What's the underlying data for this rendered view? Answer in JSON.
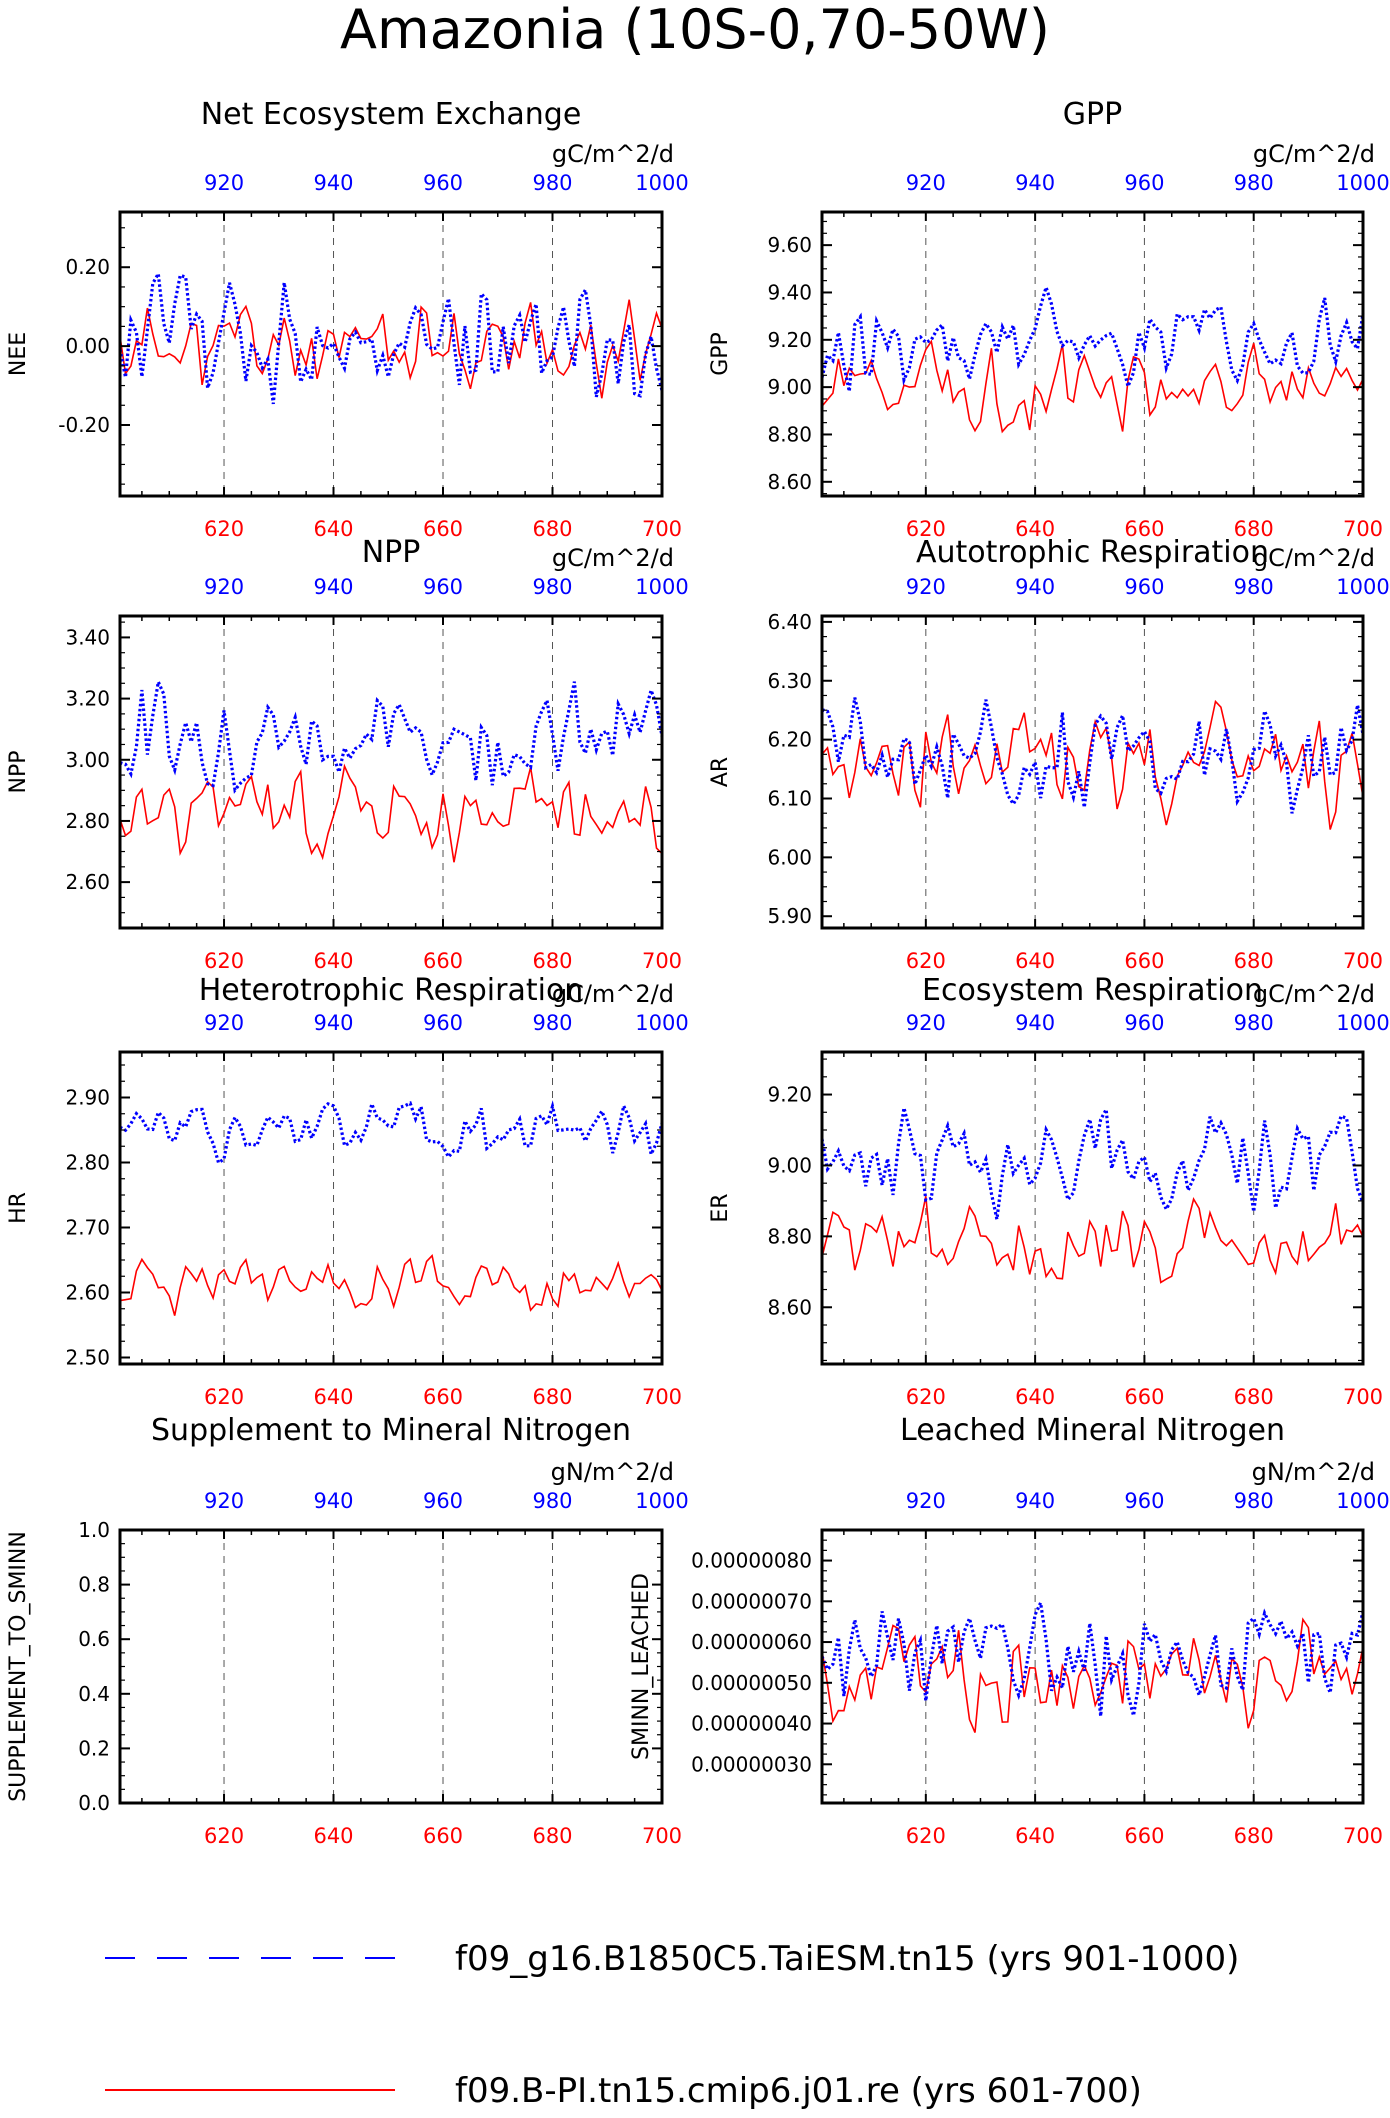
{
  "title": "Amazonia (10S-0,70-50W)",
  "colors": {
    "red": "#ff0000",
    "blue": "#0000ff",
    "axis": "#000000",
    "grid": "#555555"
  },
  "legend": {
    "items": [
      {
        "label": "f09_g16.B1850C5.TaiESM.tn15 (yrs 901-1000)",
        "color": "#0000ff",
        "style": "dashed"
      },
      {
        "label": "f09.B-PI.tn15.cmip6.j01.re (yrs 601-700)",
        "color": "#ff0000",
        "style": "solid"
      }
    ]
  },
  "chart_data": [
    {
      "type": "line",
      "title": "Net Ecosystem Exchange",
      "ylabel": "NEE",
      "units": "gC/m^2/d",
      "ylim": [
        -0.38,
        0.34
      ],
      "yticks": [
        -0.2,
        0.0,
        0.2
      ],
      "ytick_labels": [
        "-0.20",
        "0.00",
        "0.20"
      ],
      "bottom_axis": {
        "label_color": "red",
        "ticks": [
          "620",
          "640",
          "660",
          "680",
          "700"
        ],
        "range": [
          601,
          700
        ]
      },
      "top_axis": {
        "label_color": "blue",
        "ticks": [
          "920",
          "940",
          "960",
          "980",
          "1000"
        ],
        "range": [
          901,
          1000
        ]
      },
      "series": [
        {
          "color": "red",
          "style": "solid",
          "mean": 0.0,
          "amp": 0.12,
          "seed": 11
        },
        {
          "color": "blue",
          "style": "dotted",
          "mean": 0.02,
          "amp": 0.16,
          "seed": 12
        }
      ]
    },
    {
      "type": "line",
      "title": "GPP",
      "ylabel": "GPP",
      "units": "gC/m^2/d",
      "ylim": [
        8.54,
        9.74
      ],
      "yticks": [
        8.6,
        8.8,
        9.0,
        9.2,
        9.4,
        9.6
      ],
      "ytick_labels": [
        "8.60",
        "8.80",
        "9.00",
        "9.20",
        "9.40",
        "9.60"
      ],
      "bottom_axis": {
        "label_color": "red",
        "ticks": [
          "620",
          "640",
          "660",
          "680",
          "700"
        ],
        "range": [
          601,
          700
        ]
      },
      "top_axis": {
        "label_color": "blue",
        "ticks": [
          "920",
          "940",
          "960",
          "980",
          "1000"
        ],
        "range": [
          901,
          1000
        ]
      },
      "series": [
        {
          "color": "red",
          "style": "solid",
          "mean": 9.0,
          "amp": 0.16,
          "seed": 21
        },
        {
          "color": "blue",
          "style": "dotted",
          "mean": 9.2,
          "amp": 0.18,
          "seed": 22
        }
      ]
    },
    {
      "type": "line",
      "title": "NPP",
      "ylabel": "NPP",
      "units": "gC/m^2/d",
      "ylim": [
        2.45,
        3.47
      ],
      "yticks": [
        2.6,
        2.8,
        3.0,
        3.2,
        3.4
      ],
      "ytick_labels": [
        "2.60",
        "2.80",
        "3.00",
        "3.20",
        "3.40"
      ],
      "bottom_axis": {
        "label_color": "red",
        "ticks": [
          "620",
          "640",
          "660",
          "680",
          "700"
        ],
        "range": [
          601,
          700
        ]
      },
      "top_axis": {
        "label_color": "blue",
        "ticks": [
          "920",
          "940",
          "960",
          "980",
          "1000"
        ],
        "range": [
          901,
          1000
        ]
      },
      "series": [
        {
          "color": "red",
          "style": "solid",
          "mean": 2.83,
          "amp": 0.14,
          "seed": 31
        },
        {
          "color": "blue",
          "style": "dotted",
          "mean": 3.08,
          "amp": 0.16,
          "seed": 32
        }
      ]
    },
    {
      "type": "line",
      "title": "Autotrophic Respiration",
      "ylabel": "AR",
      "units": "gC/m^2/d",
      "ylim": [
        5.88,
        6.41
      ],
      "yticks": [
        5.9,
        6.0,
        6.1,
        6.2,
        6.3,
        6.4
      ],
      "ytick_labels": [
        "5.90",
        "6.00",
        "6.10",
        "6.20",
        "6.30",
        "6.40"
      ],
      "bottom_axis": {
        "label_color": "red",
        "ticks": [
          "620",
          "640",
          "660",
          "680",
          "700"
        ],
        "range": [
          601,
          700
        ]
      },
      "top_axis": {
        "label_color": "blue",
        "ticks": [
          "920",
          "940",
          "960",
          "980",
          "1000"
        ],
        "range": [
          901,
          1000
        ]
      },
      "series": [
        {
          "color": "red",
          "style": "solid",
          "mean": 6.16,
          "amp": 0.1,
          "seed": 41
        },
        {
          "color": "blue",
          "style": "dotted",
          "mean": 6.17,
          "amp": 0.1,
          "seed": 42
        }
      ]
    },
    {
      "type": "line",
      "title": "Heterotrophic Respiration",
      "ylabel": "HR",
      "units": "gC/m^2/d",
      "ylim": [
        2.49,
        2.97
      ],
      "yticks": [
        2.5,
        2.6,
        2.7,
        2.8,
        2.9
      ],
      "ytick_labels": [
        "2.50",
        "2.60",
        "2.70",
        "2.80",
        "2.90"
      ],
      "bottom_axis": {
        "label_color": "red",
        "ticks": [
          "620",
          "640",
          "660",
          "680",
          "700"
        ],
        "range": [
          601,
          700
        ]
      },
      "top_axis": {
        "label_color": "blue",
        "ticks": [
          "920",
          "940",
          "960",
          "980",
          "1000"
        ],
        "range": [
          901,
          1000
        ]
      },
      "series": [
        {
          "color": "red",
          "style": "solid",
          "mean": 2.61,
          "amp": 0.04,
          "seed": 51
        },
        {
          "color": "blue",
          "style": "dotted",
          "mean": 2.85,
          "amp": 0.045,
          "seed": 52
        }
      ]
    },
    {
      "type": "line",
      "title": "Ecosystem Respiration",
      "ylabel": "ER",
      "units": "gC/m^2/d",
      "ylim": [
        8.44,
        9.32
      ],
      "yticks": [
        8.6,
        8.8,
        9.0,
        9.2
      ],
      "ytick_labels": [
        "8.60",
        "8.80",
        "9.00",
        "9.20"
      ],
      "bottom_axis": {
        "label_color": "red",
        "ticks": [
          "620",
          "640",
          "660",
          "680",
          "700"
        ],
        "range": [
          601,
          700
        ]
      },
      "top_axis": {
        "label_color": "blue",
        "ticks": [
          "920",
          "940",
          "960",
          "980",
          "1000"
        ],
        "range": [
          901,
          1000
        ]
      },
      "series": [
        {
          "color": "red",
          "style": "solid",
          "mean": 8.77,
          "amp": 0.12,
          "seed": 61
        },
        {
          "color": "blue",
          "style": "dotted",
          "mean": 9.02,
          "amp": 0.13,
          "seed": 62
        }
      ]
    },
    {
      "type": "line",
      "title": "Supplement to Mineral Nitrogen",
      "ylabel": "SUPPLEMENT_TO_SMINN",
      "units": "gN/m^2/d",
      "ylim": [
        0.0,
        1.0
      ],
      "yticks": [
        0.0,
        0.2,
        0.4,
        0.6,
        0.8,
        1.0
      ],
      "ytick_labels": [
        "0.0",
        "0.2",
        "0.4",
        "0.6",
        "0.8",
        "1.0"
      ],
      "bottom_axis": {
        "label_color": "red",
        "ticks": [
          "620",
          "640",
          "660",
          "680",
          "700"
        ],
        "range": [
          601,
          700
        ]
      },
      "top_axis": {
        "label_color": "blue",
        "ticks": [
          "920",
          "940",
          "960",
          "980",
          "1000"
        ],
        "range": [
          901,
          1000
        ]
      },
      "series": []
    },
    {
      "type": "line",
      "title": "Leached Mineral Nitrogen",
      "ylabel": "SMINN_LEACHED",
      "units": "gN/m^2/d",
      "ylim": [
        2.05e-07,
        8.75e-07
      ],
      "yticks": [
        3e-07,
        4e-07,
        5e-07,
        6e-07,
        7e-07,
        8e-07
      ],
      "ytick_labels": [
        "0.00000030",
        "0.00000040",
        "0.00000050",
        "0.00000060",
        "0.00000070",
        "0.00000080"
      ],
      "bottom_axis": {
        "label_color": "red",
        "ticks": [
          "620",
          "640",
          "660",
          "680",
          "700"
        ],
        "range": [
          601,
          700
        ]
      },
      "top_axis": {
        "label_color": "blue",
        "ticks": [
          "920",
          "940",
          "960",
          "980",
          "1000"
        ],
        "range": [
          901,
          1000
        ]
      },
      "series": [
        {
          "color": "red",
          "style": "solid",
          "mean": 5.2e-07,
          "amp": 1.4e-07,
          "seed": 81
        },
        {
          "color": "blue",
          "style": "dotted",
          "mean": 5.6e-07,
          "amp": 1.3e-07,
          "seed": 82
        }
      ]
    }
  ]
}
